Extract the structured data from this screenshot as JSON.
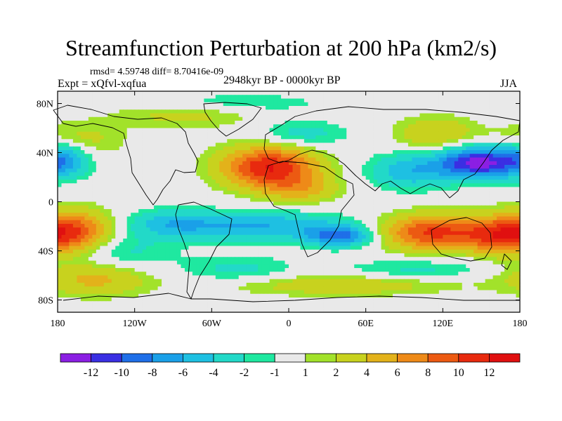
{
  "chart_data": {
    "type": "heatmap",
    "title": "Streamfunction Perturbation at 200 hPa (km2/s)",
    "stats_label": "rmsd= 4.59748  diff= 8.70416e-09",
    "experiment_label": "Expt = xQfvl-xqfua",
    "period_label": "2948kyr BP - 0000kyr BP",
    "season_label": "JJA",
    "xlim": [
      -180,
      180
    ],
    "ylim": [
      -90,
      90
    ],
    "x_ticks": [
      {
        "value": -180,
        "label": "180"
      },
      {
        "value": -120,
        "label": "120W"
      },
      {
        "value": -60,
        "label": "60W"
      },
      {
        "value": 0,
        "label": "0"
      },
      {
        "value": 60,
        "label": "60E"
      },
      {
        "value": 120,
        "label": "120E"
      },
      {
        "value": 180,
        "label": "180"
      }
    ],
    "y_ticks": [
      {
        "value": 80,
        "label": "80N"
      },
      {
        "value": 40,
        "label": "40N"
      },
      {
        "value": 0,
        "label": "0"
      },
      {
        "value": -40,
        "label": "40S"
      },
      {
        "value": -80,
        "label": "80S"
      }
    ],
    "levels": [
      -12,
      -10,
      -8,
      -6,
      -4,
      -2,
      -1,
      1,
      2,
      4,
      6,
      8,
      10,
      12
    ],
    "colorbar_labels": [
      "-12",
      "-10",
      "-8",
      "-6",
      "-4",
      "-2",
      "-1",
      "1",
      "2",
      "4",
      "6",
      "8",
      "10",
      "12"
    ],
    "colors": [
      "#8b1fe3",
      "#3a2fe3",
      "#1f6fe8",
      "#1aa0e8",
      "#1ec0e2",
      "#22d9c8",
      "#1fe8a0",
      "#e9e9e9",
      "#a2e22a",
      "#c8d21e",
      "#e3b21a",
      "#ee8a18",
      "#ec5a12",
      "#e82a0e",
      "#e01010"
    ],
    "features": [
      {
        "lon": -15,
        "lat": 28,
        "amp": 12,
        "slon": 26,
        "slat": 12
      },
      {
        "lon": 10,
        "lat": 10,
        "amp": 4,
        "slon": 20,
        "slat": 8
      },
      {
        "lon": 112,
        "lat": -25,
        "amp": 10.5,
        "slon": 28,
        "slat": 10
      },
      {
        "lon": 160,
        "lat": -28,
        "amp": 6,
        "slon": 18,
        "slat": 10
      },
      {
        "lon": -170,
        "lat": -25,
        "amp": 10.5,
        "slon": 22,
        "slat": 12
      },
      {
        "lon": -150,
        "lat": -62,
        "amp": 5,
        "slon": 30,
        "slat": 10
      },
      {
        "lon": 115,
        "lat": 55,
        "amp": 4,
        "slon": 22,
        "slat": 10
      },
      {
        "lon": -80,
        "lat": 72,
        "amp": 3,
        "slon": 40,
        "slat": 8
      },
      {
        "lon": -165,
        "lat": 50,
        "amp": 3,
        "slon": 25,
        "slat": 10
      },
      {
        "lon": 40,
        "lat": -68,
        "amp": 3.5,
        "slon": 60,
        "slat": 6
      },
      {
        "lon": 148,
        "lat": 32,
        "amp": -13,
        "slon": 22,
        "slat": 9
      },
      {
        "lon": 95,
        "lat": 25,
        "amp": -5.5,
        "slon": 22,
        "slat": 10
      },
      {
        "lon": -175,
        "lat": 35,
        "amp": -6,
        "slon": 14,
        "slat": 10
      },
      {
        "lon": 40,
        "lat": -28,
        "amp": -8.5,
        "slon": 18,
        "slat": 6
      },
      {
        "lon": -20,
        "lat": -20,
        "amp": -6,
        "slon": 45,
        "slat": 8
      },
      {
        "lon": -90,
        "lat": -18,
        "amp": -4.5,
        "slon": 25,
        "slat": 8
      },
      {
        "lon": -135,
        "lat": -42,
        "amp": -3,
        "slon": 30,
        "slat": 12
      },
      {
        "lon": 10,
        "lat": 55,
        "amp": -3,
        "slon": 25,
        "slat": 8
      },
      {
        "lon": -50,
        "lat": 80,
        "amp": -2.5,
        "slon": 50,
        "slat": 6
      },
      {
        "lon": 100,
        "lat": -55,
        "amp": -2.5,
        "slon": 40,
        "slat": 6
      },
      {
        "lon": -40,
        "lat": -55,
        "amp": -2.5,
        "slon": 30,
        "slat": 8
      }
    ]
  }
}
